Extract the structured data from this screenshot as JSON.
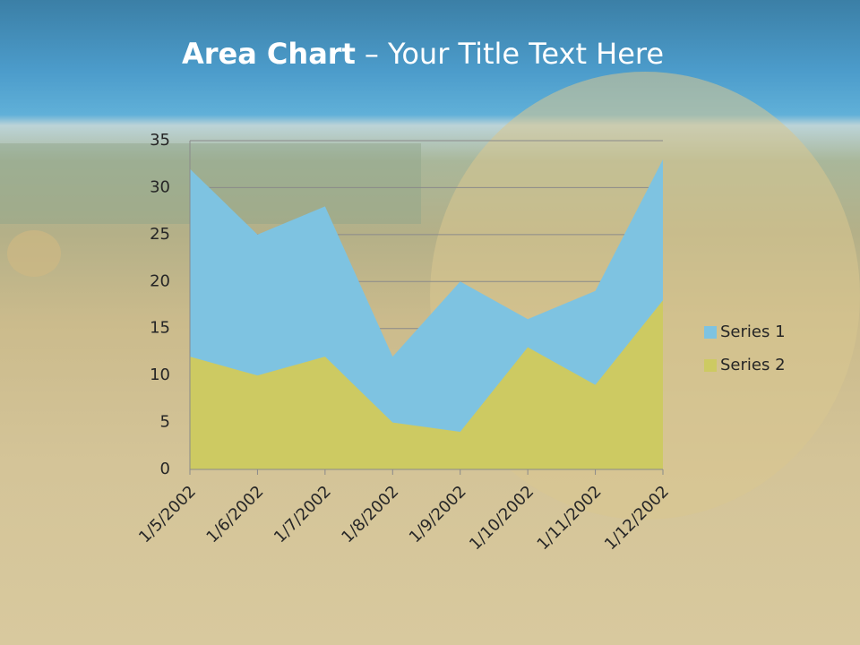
{
  "chart_data": {
    "type": "area",
    "title": "Area Chart",
    "title_suffix": "– Your Title Text Here",
    "categories": [
      "1/5/2002",
      "1/6/2002",
      "1/7/2002",
      "1/8/2002",
      "1/9/2002",
      "1/10/2002",
      "1/11/2002",
      "1/12/2002"
    ],
    "series": [
      {
        "name": "Series 1",
        "color": "#7ec3e1",
        "values": [
          32,
          25,
          28,
          12,
          20,
          16,
          19,
          33
        ]
      },
      {
        "name": "Series 2",
        "color": "#cdca62",
        "values": [
          12,
          10,
          12,
          5,
          4,
          13,
          9,
          18
        ]
      }
    ],
    "ylim": [
      0,
      35
    ],
    "yticks": [
      0,
      5,
      10,
      15,
      20,
      25,
      30,
      35
    ],
    "grid": true,
    "legend": "right"
  }
}
